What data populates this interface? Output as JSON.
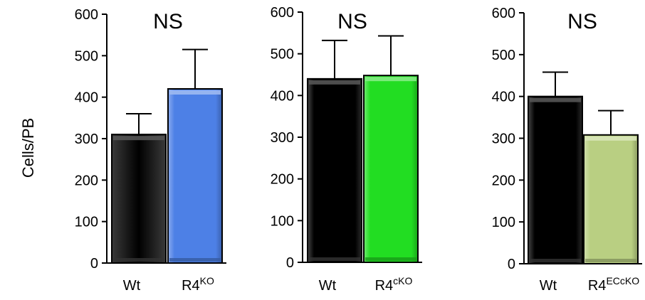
{
  "ylabel": "Cells/PB",
  "chart_data": [
    {
      "type": "bar",
      "title": "NS",
      "categories": [
        {
          "base": "Wt",
          "sup": ""
        },
        {
          "base": "R4",
          "sup": "KO"
        }
      ],
      "values": [
        310,
        420
      ],
      "errors": [
        50,
        95
      ],
      "colors": [
        "#000000",
        "#4d80e6"
      ],
      "ylim": [
        0,
        600
      ],
      "yticks": [
        0,
        100,
        200,
        300,
        400,
        500,
        600
      ]
    },
    {
      "type": "bar",
      "title": "NS",
      "categories": [
        {
          "base": "Wt",
          "sup": ""
        },
        {
          "base": "R4",
          "sup": "cKO"
        }
      ],
      "values": [
        440,
        448
      ],
      "errors": [
        92,
        95
      ],
      "colors": [
        "#000000",
        "#22dd22"
      ],
      "ylim": [
        0,
        600
      ],
      "yticks": [
        0,
        100,
        200,
        300,
        400,
        500,
        600
      ]
    },
    {
      "type": "bar",
      "title": "NS",
      "categories": [
        {
          "base": "Wt",
          "sup": ""
        },
        {
          "base": "R4",
          "sup": "ECcKO"
        }
      ],
      "values": [
        400,
        308
      ],
      "errors": [
        58,
        58
      ],
      "colors": [
        "#000000",
        "#b9cf82"
      ],
      "ylim": [
        0,
        600
      ],
      "yticks": [
        0,
        100,
        200,
        300,
        400,
        500,
        600
      ]
    }
  ]
}
